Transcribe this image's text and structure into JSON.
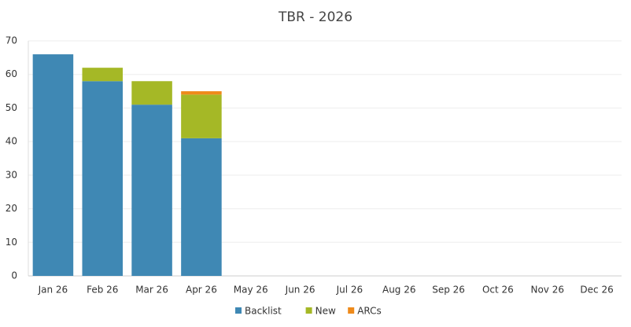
{
  "chart_data": {
    "type": "stacked-bar",
    "title": "TBR - 2026",
    "categories": [
      "Jan 26",
      "Feb 26",
      "Mar 26",
      "Apr 26",
      "May 26",
      "Jun 26",
      "Jul 26",
      "Aug 26",
      "Sep 26",
      "Oct 26",
      "Nov 26",
      "Dec 26"
    ],
    "series": [
      {
        "name": "Backlist",
        "color": "#3f88b4",
        "values": [
          66,
          58,
          51,
          41,
          null,
          null,
          null,
          null,
          null,
          null,
          null,
          null
        ]
      },
      {
        "name": "New",
        "color": "#a5b826",
        "values": [
          null,
          4,
          7,
          13,
          null,
          null,
          null,
          null,
          null,
          null,
          null,
          null
        ]
      },
      {
        "name": "ARCs",
        "color": "#ee8a1b",
        "values": [
          null,
          null,
          null,
          1,
          null,
          null,
          null,
          null,
          null,
          null,
          null,
          null
        ]
      }
    ],
    "ylim": [
      0,
      70
    ],
    "yticks": [
      0,
      10,
      20,
      30,
      40,
      50,
      60,
      70
    ],
    "grid": true,
    "legend": "bottom"
  }
}
